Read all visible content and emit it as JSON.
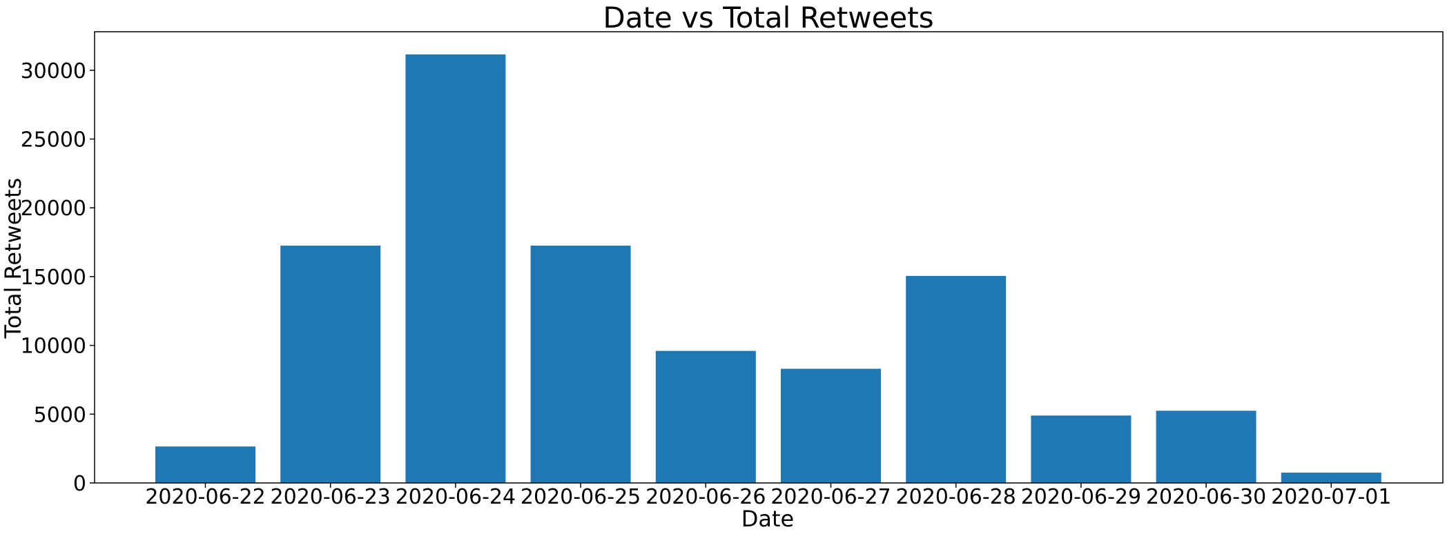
{
  "chart_data": {
    "type": "bar",
    "title": "Date vs Total Retweets",
    "xlabel": "Date",
    "ylabel": "Total Retweets",
    "categories": [
      "2020-06-22",
      "2020-06-23",
      "2020-06-24",
      "2020-06-25",
      "2020-06-26",
      "2020-06-27",
      "2020-06-28",
      "2020-06-29",
      "2020-06-30",
      "2020-07-01"
    ],
    "values": [
      2650,
      17250,
      31150,
      17250,
      9600,
      8300,
      15050,
      4900,
      5250,
      750
    ],
    "ylim": [
      0,
      32800
    ],
    "yticks": [
      0,
      5000,
      10000,
      15000,
      20000,
      25000,
      30000
    ],
    "ytick_labels": [
      "0",
      "5000",
      "10000",
      "15000",
      "20000",
      "25000",
      "30000"
    ],
    "bar_color": "#1f77b4",
    "grid": false,
    "legend": "none"
  }
}
